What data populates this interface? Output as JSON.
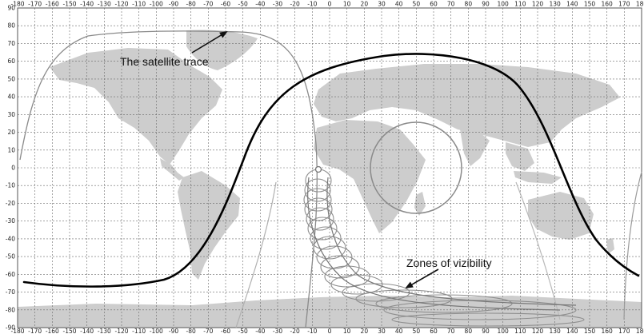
{
  "map": {
    "lon_ticks": [
      "-180",
      "-170",
      "-160",
      "-150",
      "-140",
      "-130",
      "-120",
      "-110",
      "-100",
      "-90",
      "-80",
      "-70",
      "-60",
      "-50",
      "-40",
      "-30",
      "-20",
      "-10",
      "0",
      "10",
      "20",
      "30",
      "40",
      "50",
      "60",
      "70",
      "80",
      "90",
      "100",
      "110",
      "120",
      "130",
      "140",
      "150",
      "160",
      "170",
      "180"
    ],
    "lat_ticks": [
      "90",
      "80",
      "70",
      "60",
      "50",
      "40",
      "30",
      "20",
      "10",
      "0",
      "-10",
      "-20",
      "-30",
      "-40",
      "-50",
      "-60",
      "-70",
      "-80",
      "-90"
    ],
    "annotations": {
      "satellite_trace": "The satellite trace",
      "zones_of_visibility": "Zones of vizibility"
    },
    "colors": {
      "background": "#ffffff",
      "land": "#cdcdcd",
      "grid": "#6a6a6a",
      "main_trace": "#000000",
      "secondary_trace": "#8a8a8a",
      "zone_loops": "#8e8e8e",
      "circle": "#8a8a8a"
    }
  }
}
